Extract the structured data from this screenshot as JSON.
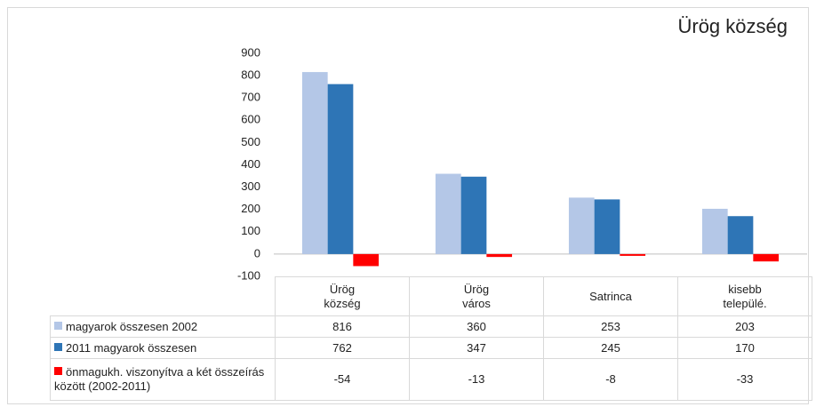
{
  "chart_data": {
    "type": "bar",
    "title": "Ürög község",
    "categories": [
      "Ürög község",
      "Ürög város",
      "Satrinca",
      "kisebb települé."
    ],
    "series": [
      {
        "name": "magyarok összesen 2002",
        "color": "#b4c7e7",
        "values": [
          816,
          360,
          253,
          203
        ]
      },
      {
        "name": "2011 magyarok összesen",
        "color": "#2e75b6",
        "values": [
          762,
          347,
          245,
          170
        ]
      },
      {
        "name": "önmagukh. viszonyítva a két összeírás között (2002-2011)",
        "color": "#ff0000",
        "values": [
          -54,
          -13,
          -8,
          -33
        ]
      }
    ],
    "ylim": [
      -100,
      900
    ],
    "yticks": [
      -100,
      0,
      100,
      200,
      300,
      400,
      500,
      600,
      700,
      800,
      900
    ],
    "grid": false
  }
}
